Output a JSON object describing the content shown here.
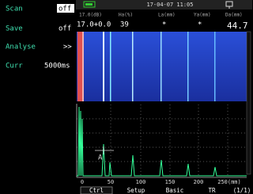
{
  "menu": [
    {
      "label": "Scan",
      "value": "off"
    },
    {
      "label": "Save",
      "value": "off"
    },
    {
      "label": "Analyse",
      "value": ">>"
    },
    {
      "label": "Curr",
      "value": "5000ms"
    }
  ],
  "status": {
    "datetime": "17-04-07 11:05"
  },
  "readings": {
    "headers": [
      "17.0(dB)",
      "Ha(%)",
      "La(mm)",
      "Ya(mm)",
      "Da(mm)"
    ],
    "values": [
      "17.0+0.0",
      "39",
      "*",
      "*",
      "44.7"
    ]
  },
  "gate_label": "A",
  "axis_labels": [
    "0",
    "50",
    "100",
    "150",
    "200",
    "250(mm)"
  ],
  "tabs": [
    "Ctrl",
    "Setup",
    "Basic",
    "TR",
    "(1/1)"
  ]
}
